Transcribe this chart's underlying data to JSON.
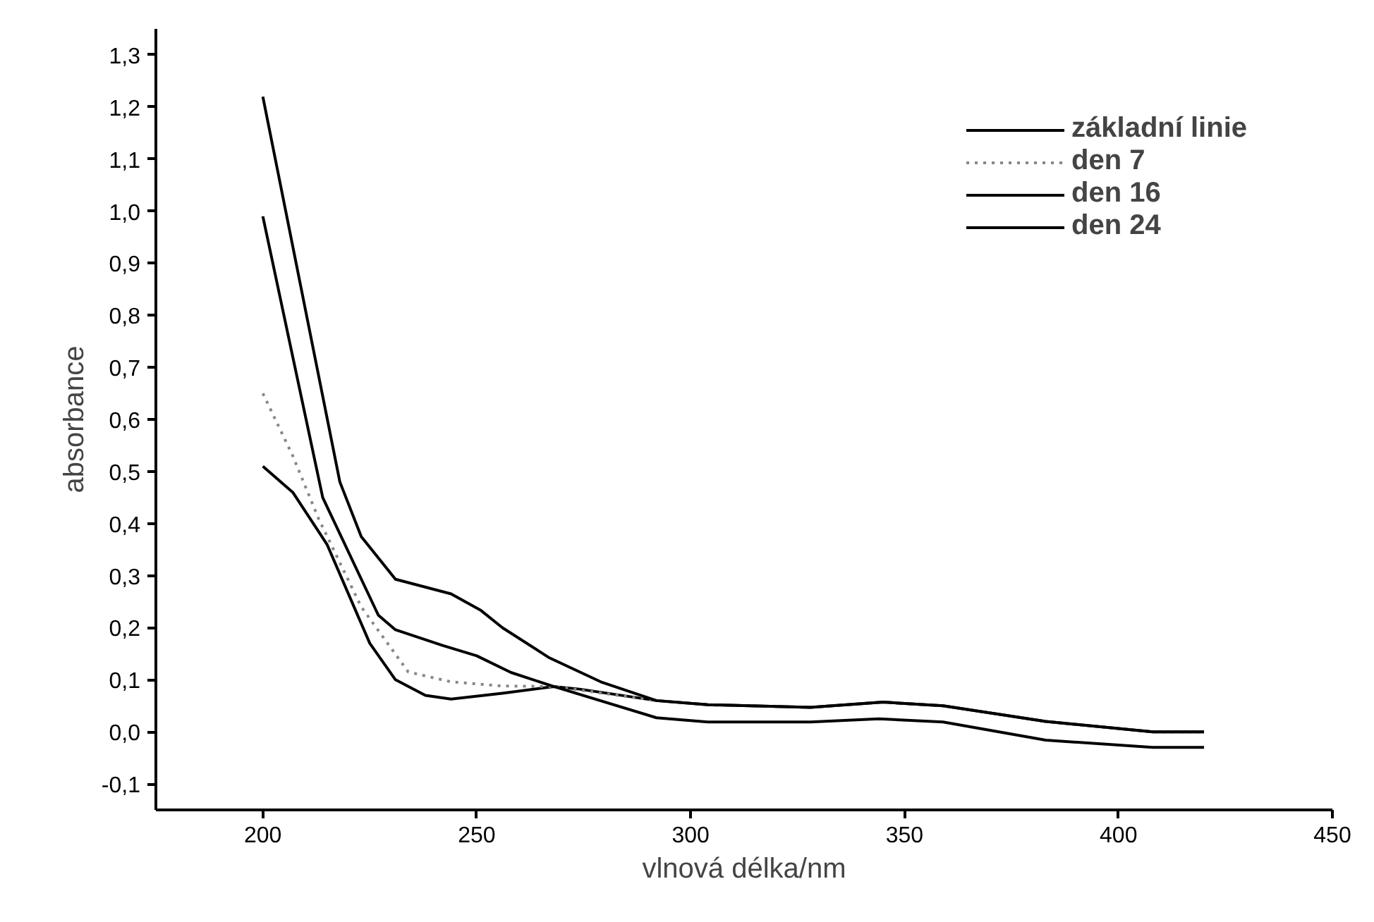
{
  "chart_data": {
    "type": "line",
    "xlabel": "vlnová délka/nm",
    "ylabel": "absorbance",
    "xlim": [
      175,
      450
    ],
    "xticks": [
      200,
      250,
      300,
      350,
      400,
      450
    ],
    "ylim": [
      -0.15,
      1.35
    ],
    "yticks": [
      {
        "value": -0.1,
        "label": "-0,1"
      },
      {
        "value": 0,
        "label": "0,0"
      },
      {
        "value": 0.1,
        "label": "0,1"
      },
      {
        "value": 0.2,
        "label": "0,2"
      },
      {
        "value": 0.3,
        "label": "0,3"
      },
      {
        "value": 0.4,
        "label": "0,4"
      },
      {
        "value": 0.5,
        "label": "0,5"
      },
      {
        "value": 0.6,
        "label": "0,6"
      },
      {
        "value": 0.7,
        "label": "0,7"
      },
      {
        "value": 0.8,
        "label": "0,8"
      },
      {
        "value": 0.9,
        "label": "0,9"
      },
      {
        "value": 1.0,
        "label": "1,0"
      },
      {
        "value": 1.1,
        "label": "1,1"
      },
      {
        "value": 1.2,
        "label": "1,2"
      },
      {
        "value": 1.3,
        "label": "1,3"
      }
    ],
    "grid": false,
    "legend": "top right",
    "series": [
      {
        "name": "základní linie",
        "color": "#000000",
        "line_style": "solid",
        "x": [
          200,
          207,
          215,
          225,
          231,
          238,
          244,
          256,
          268,
          274,
          292,
          304,
          328,
          345,
          359,
          383,
          408,
          420
        ],
        "values": [
          0.51,
          0.46,
          0.36,
          0.17,
          0.1,
          0.07,
          0.063,
          0.074,
          0.087,
          0.082,
          0.06,
          0.052,
          0.047,
          0.057,
          0.05,
          0.02,
          0.0,
          0.0
        ]
      },
      {
        "name": "den 7",
        "color": "#888888",
        "line_style": "dotted",
        "x": [
          200,
          207,
          213,
          223,
          234,
          244,
          256,
          268,
          292,
          304,
          328,
          345,
          359,
          383,
          408,
          420
        ],
        "values": [
          0.65,
          0.53,
          0.41,
          0.24,
          0.115,
          0.096,
          0.088,
          0.087,
          0.06,
          0.052,
          0.047,
          0.057,
          0.05,
          0.02,
          0.0,
          0.0
        ]
      },
      {
        "name": "den 16",
        "color": "#000000",
        "line_style": "solid",
        "x": [
          200,
          214,
          227,
          231,
          242,
          250,
          258,
          268,
          292,
          304,
          328,
          344,
          359,
          383,
          408,
          420
        ],
        "values": [
          0.99,
          0.45,
          0.224,
          0.196,
          0.166,
          0.146,
          0.114,
          0.087,
          0.027,
          0.019,
          0.019,
          0.025,
          0.019,
          -0.016,
          -0.03,
          -0.03
        ]
      },
      {
        "name": "den 24",
        "color": "#000000",
        "line_style": "solid",
        "x": [
          200,
          218,
          223,
          231,
          244,
          251,
          256,
          267,
          279,
          292,
          304,
          328,
          345,
          359,
          383,
          408,
          420
        ],
        "values": [
          1.22,
          0.48,
          0.375,
          0.293,
          0.265,
          0.233,
          0.2,
          0.142,
          0.096,
          0.06,
          0.052,
          0.047,
          0.057,
          0.05,
          0.02,
          0.0,
          0.0
        ]
      }
    ]
  }
}
